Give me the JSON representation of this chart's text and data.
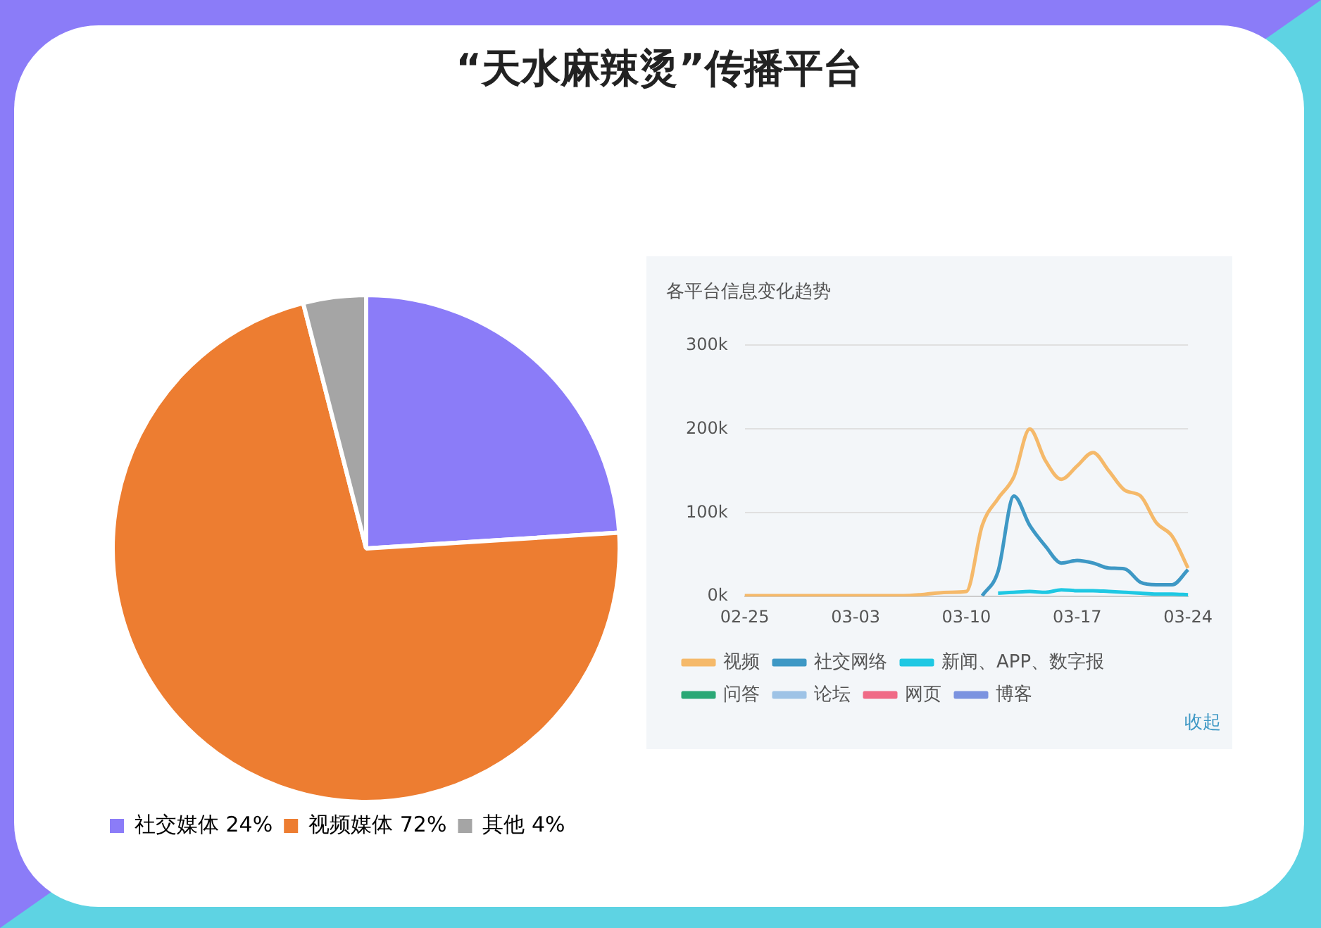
{
  "chart_data": [
    {
      "type": "pie",
      "title": "“天水麻辣烫”传播平台",
      "categories": [
        "社交媒体",
        "视频媒体",
        "其他"
      ],
      "values": [
        24,
        72,
        4
      ],
      "colors": [
        "#8b7cf8",
        "#ed7d31",
        "#a5a5a5"
      ],
      "value_labels": [
        "24%",
        "72%",
        "4%"
      ],
      "legend": "bottom"
    },
    {
      "type": "line",
      "title": "各平台信息变化趋势",
      "categories": [
        "02-25",
        null,
        null,
        null,
        null,
        null,
        null,
        "03-03",
        null,
        null,
        null,
        null,
        null,
        null,
        "03-10",
        null,
        null,
        null,
        null,
        null,
        null,
        "03-17",
        null,
        null,
        null,
        null,
        null,
        null,
        "03-24"
      ],
      "series": [
        {
          "name": "视频",
          "color": "#f5b96a",
          "values": [
            1000,
            1000,
            1000,
            1000,
            1000,
            1000,
            1000,
            1000,
            1000,
            1000,
            1000,
            2000,
            4000,
            5000,
            6000,
            85000,
            117000,
            143000,
            200000,
            162000,
            140000,
            156000,
            172000,
            150000,
            127000,
            120000,
            88000,
            72000,
            34000
          ]
        },
        {
          "name": "社交网络",
          "color": "#3e98c5",
          "values": [
            null,
            null,
            null,
            null,
            null,
            null,
            null,
            null,
            null,
            null,
            null,
            null,
            null,
            null,
            null,
            1000,
            30000,
            120000,
            85000,
            60000,
            40000,
            43000,
            40000,
            34000,
            33000,
            17000,
            14000,
            14000,
            32000
          ]
        },
        {
          "name": "新闻、APP、数字报",
          "color": "#1fc8e3",
          "values": [
            null,
            null,
            null,
            null,
            null,
            null,
            null,
            null,
            null,
            null,
            null,
            null,
            null,
            null,
            null,
            null,
            4000,
            5000,
            6000,
            5000,
            8000,
            7000,
            7000,
            6000,
            5000,
            4000,
            3000,
            3000,
            2000
          ]
        },
        {
          "name": "问答",
          "color": "#2aa876",
          "values": [
            null,
            null,
            null,
            null,
            null,
            null,
            null,
            null,
            null,
            null,
            null,
            null,
            null,
            null,
            null,
            null,
            null,
            null,
            null,
            null,
            null,
            null,
            null,
            null,
            null,
            null,
            null,
            null,
            null
          ]
        },
        {
          "name": "论坛",
          "color": "#9ec3e6",
          "values": [
            null,
            null,
            null,
            null,
            null,
            null,
            null,
            null,
            null,
            null,
            null,
            null,
            null,
            null,
            null,
            null,
            null,
            null,
            null,
            null,
            null,
            null,
            null,
            null,
            null,
            null,
            null,
            null,
            null
          ]
        },
        {
          "name": "网页",
          "color": "#f06a86",
          "values": [
            null,
            null,
            null,
            null,
            null,
            null,
            null,
            null,
            null,
            null,
            null,
            null,
            null,
            null,
            null,
            null,
            null,
            null,
            null,
            null,
            null,
            null,
            null,
            null,
            null,
            null,
            null,
            null,
            null
          ]
        },
        {
          "name": "博客",
          "color": "#7b93e0",
          "values": [
            null,
            null,
            null,
            null,
            null,
            null,
            null,
            null,
            null,
            null,
            null,
            null,
            null,
            null,
            null,
            null,
            null,
            null,
            null,
            null,
            null,
            null,
            null,
            null,
            null,
            null,
            null,
            null,
            null
          ]
        }
      ],
      "ylim": [
        0,
        300000
      ],
      "yticks": [
        {
          "value": 0,
          "label": "0k"
        },
        {
          "value": 100000,
          "label": "100k"
        },
        {
          "value": 200000,
          "label": "200k"
        },
        {
          "value": 300000,
          "label": "300k"
        }
      ],
      "grid": "y",
      "legend": "bottom",
      "marker": "none",
      "line_style": "solid",
      "annotations": [
        "收起"
      ]
    }
  ]
}
